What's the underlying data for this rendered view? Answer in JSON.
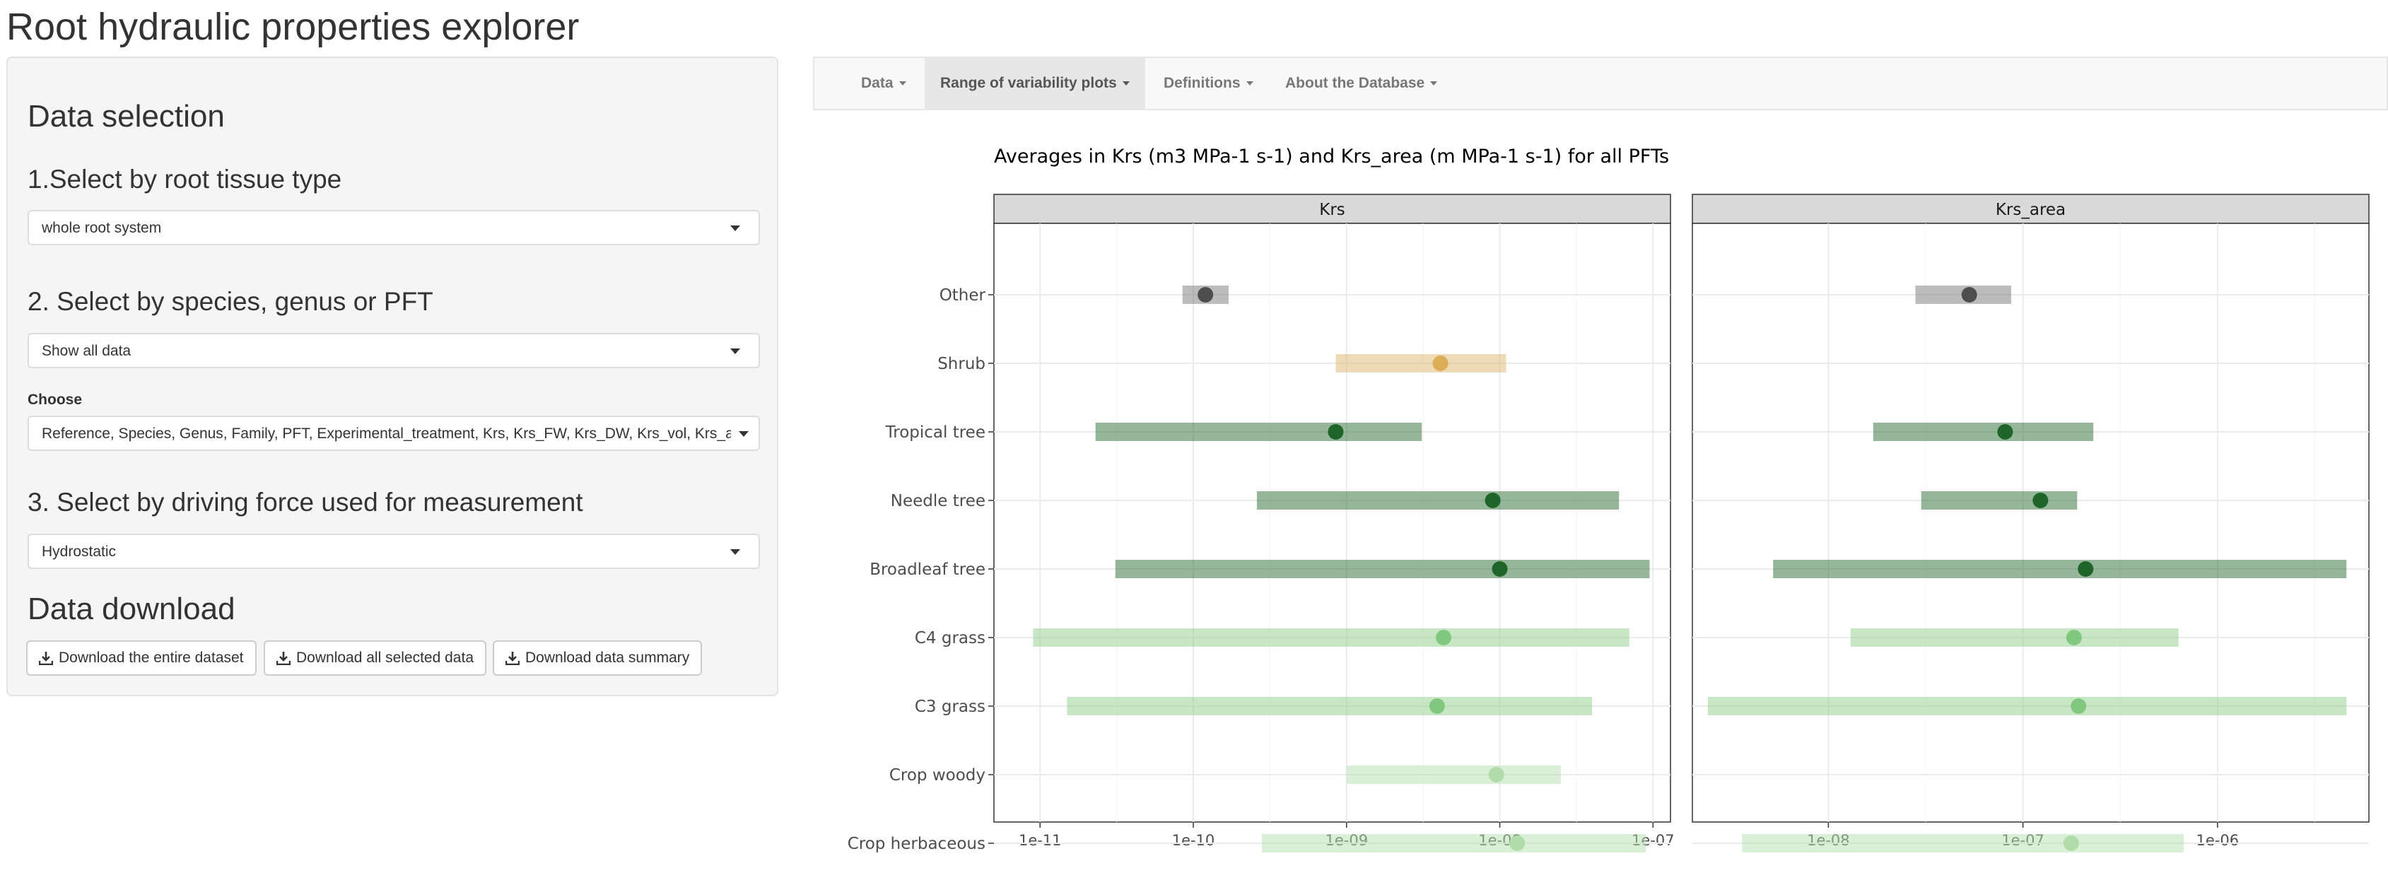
{
  "app": {
    "title": "Root hydraulic properties explorer"
  },
  "sidebar": {
    "heading": "Data selection",
    "tissue": {
      "label": "1.Select by root tissue type",
      "value": "whole root system"
    },
    "species": {
      "label": "2. Select by species, genus or PFT",
      "value": "Show all data"
    },
    "choose": {
      "label": "Choose",
      "value": "Reference, Species, Genus, Family, PFT, Experimental_treatment, Krs, Krs_FW, Krs_DW, Krs_vol, Krs_are"
    },
    "force": {
      "label": "3. Select by driving force used for measurement",
      "value": "Hydrostatic"
    },
    "download": {
      "heading": "Data download",
      "entire": "Download the entire dataset",
      "selected": "Download all selected data",
      "summary": "Download data summary"
    }
  },
  "nav": {
    "items": [
      {
        "label": "Data",
        "active": false
      },
      {
        "label": "Range of variability plots",
        "active": true
      },
      {
        "label": "Definitions",
        "active": false
      },
      {
        "label": "About the Database",
        "active": false
      }
    ]
  },
  "chart_data": {
    "type": "range-dot",
    "title": "Averages in Krs (m3 MPa-1 s-1) and Krs_area (m MPa-1 s-1) for all PFTs",
    "categories": [
      "Other",
      "Shrub",
      "Tropical tree",
      "Needle tree",
      "Broadleaf tree",
      "C4 grass",
      "C3 grass",
      "Crop woody",
      "Crop herbaceous"
    ],
    "colors": [
      "#7a7a7a",
      "#ddb56d",
      "#2e6e37",
      "#2e6e37",
      "#2e6e37",
      "#8fd08a",
      "#8fd08a",
      "#b6dfb0",
      "#b6dfb0"
    ],
    "point_colors": [
      "#4d4d4d",
      "#dcae58",
      "#1f6429",
      "#1f6429",
      "#1f6429",
      "#82c77f",
      "#82c77f",
      "#b1dcaa",
      "#b1dcaa"
    ],
    "log_x": true,
    "grid": true,
    "panels": [
      {
        "name": "Krs",
        "xlim": [
          5e-12,
          1.3e-07
        ],
        "ticks": [
          1e-11,
          1e-10,
          1e-09,
          1e-08,
          1e-07
        ],
        "tick_labels": [
          "1e-11",
          "1e-10",
          "1e-09",
          "1e-08",
          "1e-07"
        ],
        "min": [
          8.5e-11,
          8.5e-10,
          2.3e-11,
          2.6e-10,
          3.1e-11,
          9e-12,
          1.5e-11,
          1e-09,
          2.8e-10
        ],
        "mean": [
          1.2e-10,
          4.1e-09,
          8.5e-10,
          9e-09,
          1e-08,
          4.3e-09,
          3.9e-09,
          9.5e-09,
          1.3e-08
        ],
        "max": [
          1.7e-10,
          1.1e-08,
          3.1e-09,
          6e-08,
          9.5e-08,
          7e-08,
          4e-08,
          2.5e-08,
          9e-08
        ]
      },
      {
        "name": "Krs_area",
        "xlim": [
          2e-09,
          6e-06
        ],
        "ticks": [
          1e-08,
          1e-07,
          1e-06
        ],
        "tick_labels": [
          "1e-08",
          "1e-07",
          "1e-06"
        ],
        "min": [
          2.8e-08,
          null,
          1.7e-08,
          3e-08,
          5.2e-09,
          1.3e-08,
          2.4e-09,
          null,
          3.6e-09
        ],
        "mean": [
          5.3e-08,
          null,
          8.1e-08,
          1.23e-07,
          2.1e-07,
          1.83e-07,
          1.93e-07,
          null,
          1.77e-07
        ],
        "max": [
          8.7e-08,
          null,
          2.3e-07,
          1.9e-07,
          4.6e-06,
          6.3e-07,
          4.6e-06,
          null,
          6.7e-07
        ]
      }
    ]
  }
}
